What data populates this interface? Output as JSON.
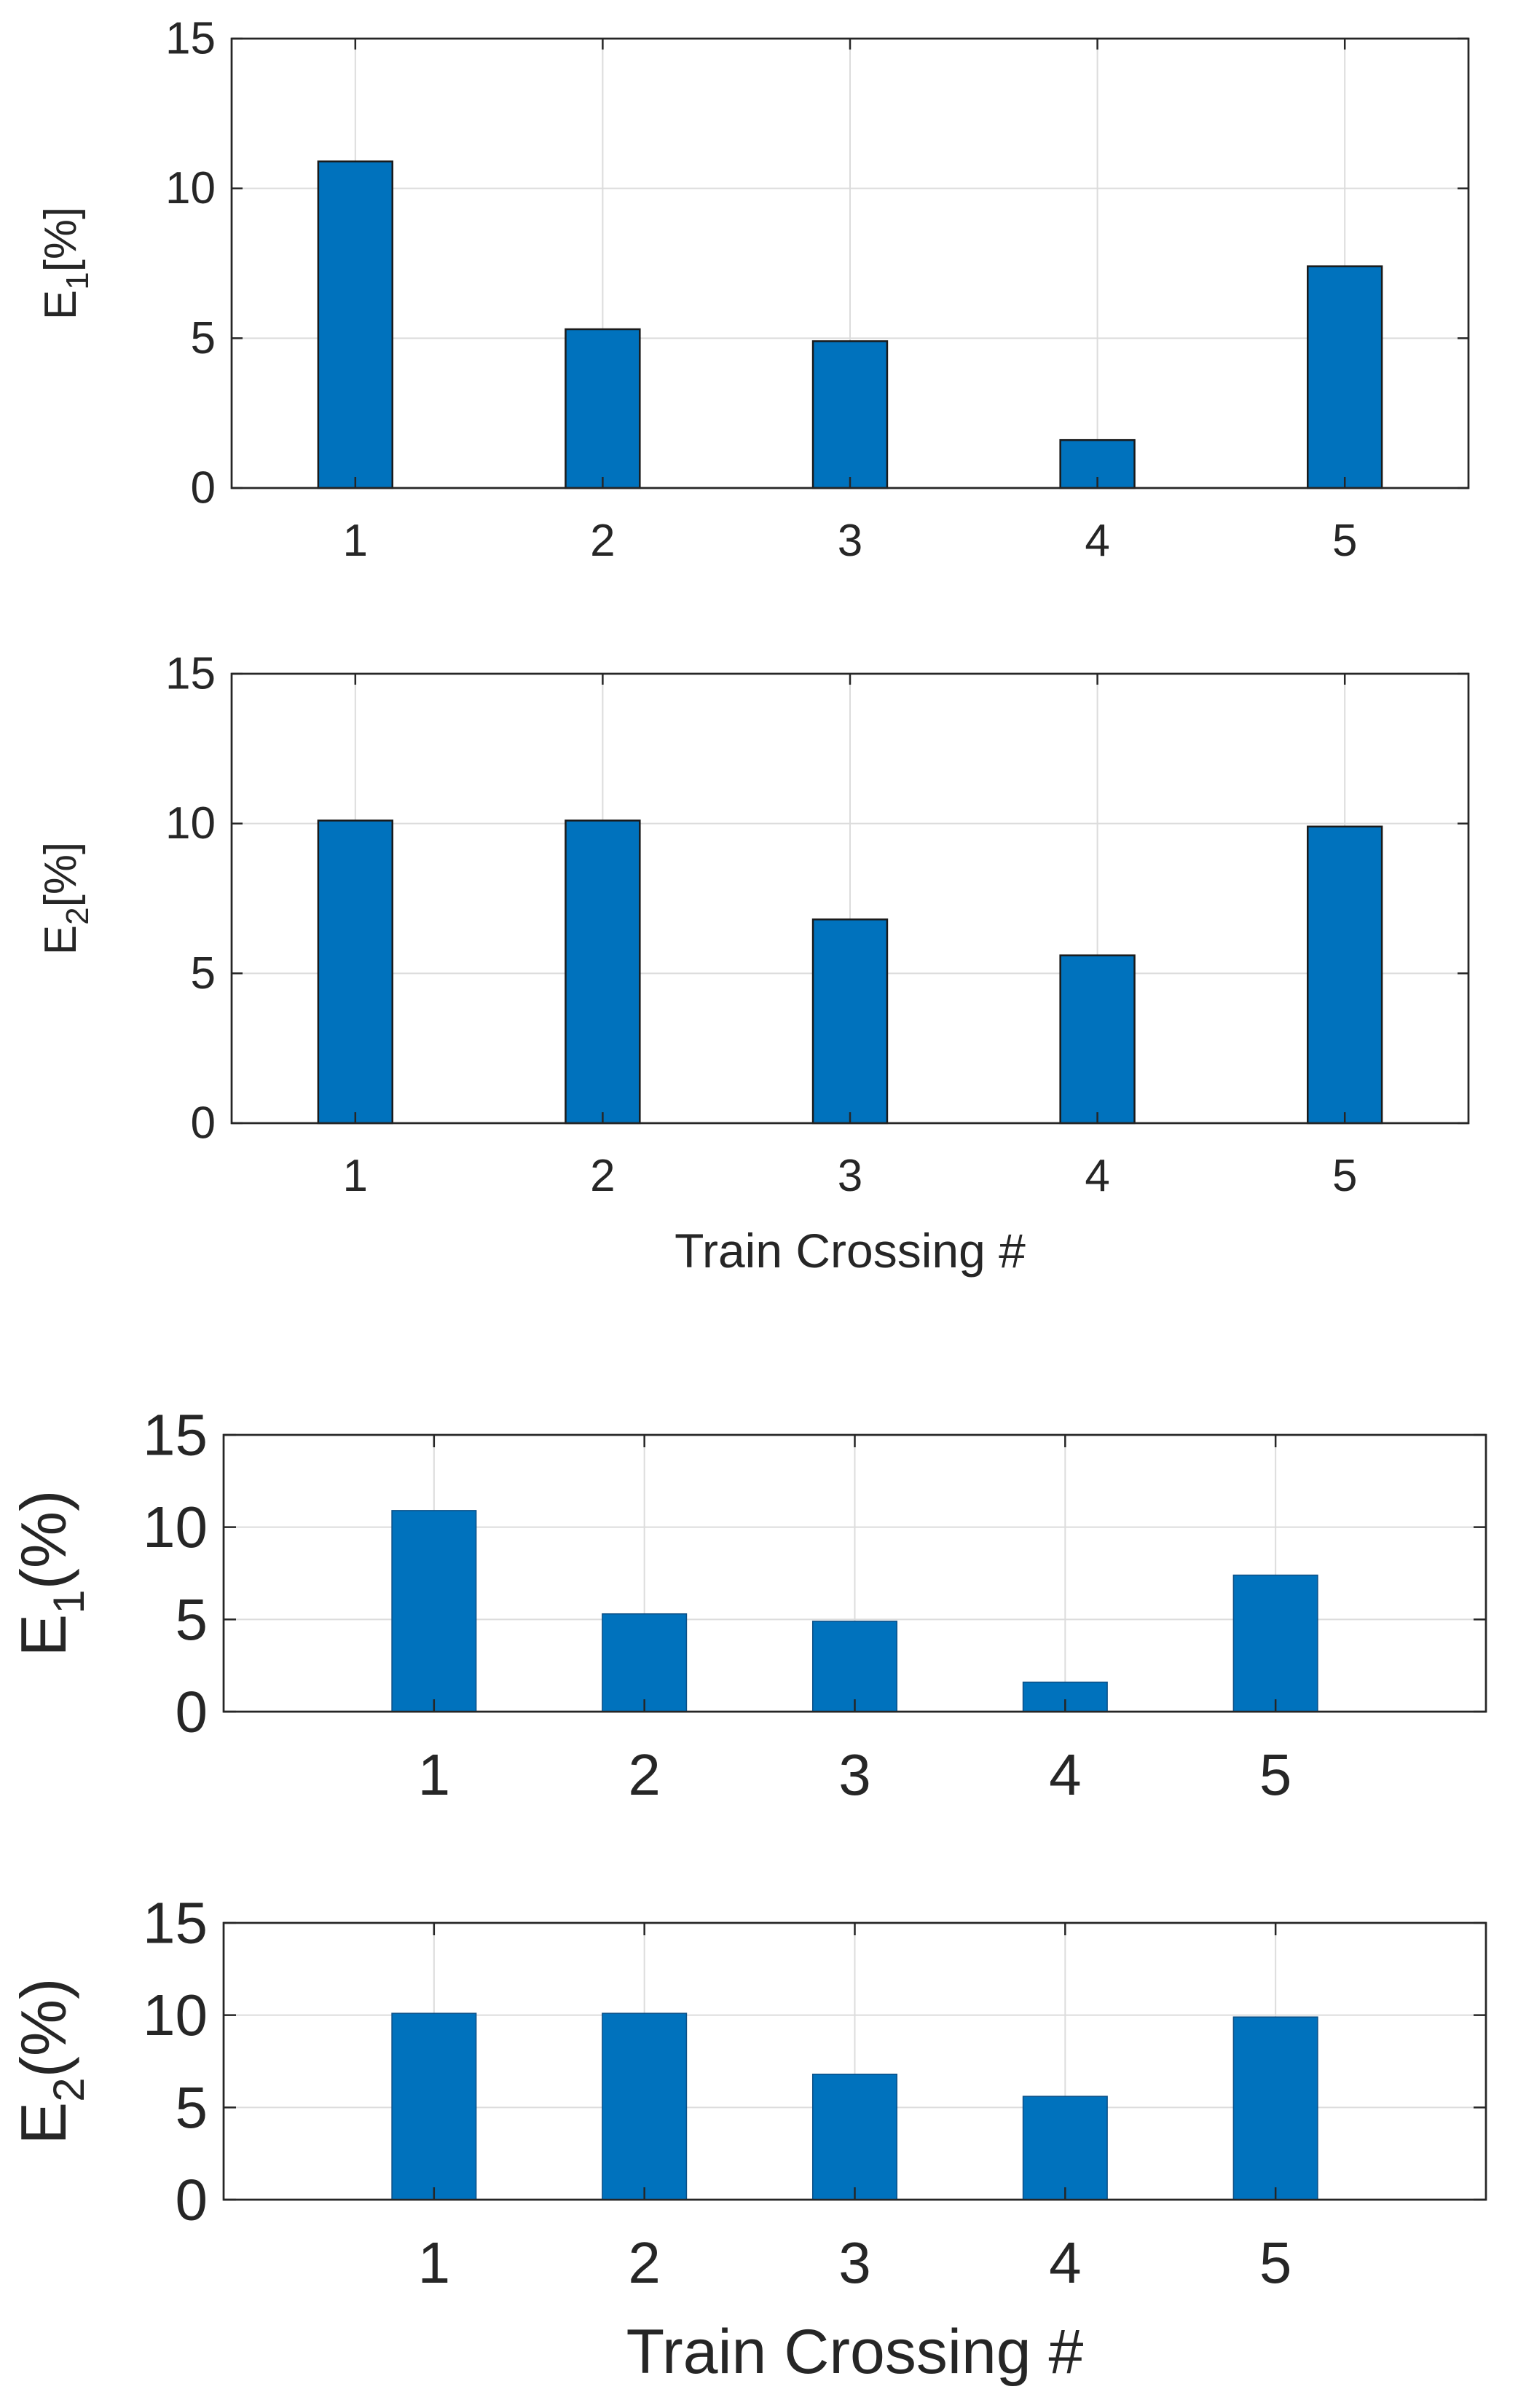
{
  "chart_data": [
    {
      "type": "bar",
      "title": "",
      "categories": [
        "1",
        "2",
        "3",
        "4",
        "5"
      ],
      "values": [
        10.9,
        5.3,
        4.9,
        1.6,
        7.4
      ],
      "ylabel_main": "E",
      "ylabel_sub": "1",
      "ylabel_unit": "[%]",
      "xlabel": "",
      "ylim": [
        0,
        15
      ],
      "yticks": [
        "0",
        "5",
        "10",
        "15"
      ],
      "grid": true,
      "color": "#0072bd"
    },
    {
      "type": "bar",
      "title": "",
      "categories": [
        "1",
        "2",
        "3",
        "4",
        "5"
      ],
      "values": [
        10.1,
        10.1,
        6.8,
        5.6,
        9.9
      ],
      "ylabel_main": "E",
      "ylabel_sub": "2",
      "ylabel_unit": "[%]",
      "xlabel": "Train Crossing #",
      "ylim": [
        0,
        15
      ],
      "yticks": [
        "0",
        "5",
        "10",
        "15"
      ],
      "grid": true,
      "color": "#0072bd"
    },
    {
      "type": "bar",
      "title": "",
      "categories": [
        "1",
        "2",
        "3",
        "4",
        "5"
      ],
      "values": [
        10.9,
        5.3,
        4.9,
        1.6,
        7.4
      ],
      "ylabel_main": "E",
      "ylabel_sub": "1",
      "ylabel_unit": "(%)",
      "xlabel": "",
      "ylim": [
        0,
        15
      ],
      "yticks": [
        "0",
        "5",
        "10",
        "15"
      ],
      "grid": true,
      "color": "#0072bd"
    },
    {
      "type": "bar",
      "title": "",
      "categories": [
        "1",
        "2",
        "3",
        "4",
        "5"
      ],
      "values": [
        10.1,
        10.1,
        6.8,
        5.6,
        9.9
      ],
      "ylabel_main": "E",
      "ylabel_sub": "2",
      "ylabel_unit": "(%)",
      "xlabel": "Train Crossing #",
      "ylim": [
        0,
        15
      ],
      "yticks": [
        "0",
        "5",
        "10",
        "15"
      ],
      "grid": true,
      "color": "#0072bd"
    }
  ]
}
